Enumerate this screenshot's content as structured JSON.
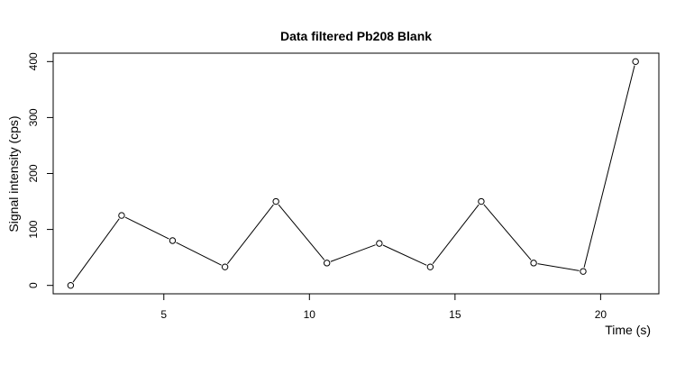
{
  "chart_data": {
    "type": "line",
    "title": "Data filtered Pb208 Blank",
    "xlabel": "Time (s)",
    "ylabel": "Signal intensity (cps)",
    "xlim": [
      1.2,
      22.0
    ],
    "ylim": [
      -15,
      415
    ],
    "x_ticks": [
      5,
      10,
      15,
      20
    ],
    "x_tick_labels": [
      "5",
      "10",
      "15",
      "20"
    ],
    "y_ticks": [
      0,
      100,
      200,
      300,
      400
    ],
    "y_tick_labels": [
      "0",
      "100",
      "200",
      "300",
      "400"
    ],
    "grid": false,
    "line_color": "#000000",
    "marker": "open-circle",
    "series": [
      {
        "x": [
          1.8,
          3.55,
          5.3,
          7.1,
          8.85,
          10.6,
          12.4,
          14.15,
          15.9,
          17.7,
          19.4,
          21.2
        ],
        "values": [
          0,
          125,
          80,
          33,
          150,
          40,
          75,
          33,
          150,
          40,
          25,
          400
        ]
      }
    ]
  }
}
